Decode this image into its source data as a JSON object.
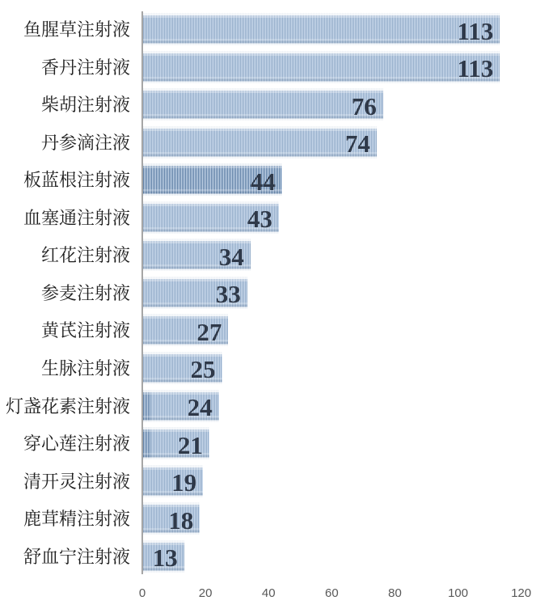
{
  "chart_data": {
    "type": "bar",
    "orientation": "horizontal",
    "title": "",
    "xlabel": "",
    "ylabel": "",
    "categories": [
      "鱼腥草注射液",
      "香丹注射液",
      "柴胡注射液",
      "丹参滴注液",
      "板蓝根注射液",
      "血塞通注射液",
      "红花注射液",
      "参麦注射液",
      "黄芪注射液",
      "生脉注射液",
      "灯盏花素注射液",
      "穿心莲注射液",
      "清开灵注射液",
      "鹿茸精注射液",
      "舒血宁注射液"
    ],
    "values": [
      113,
      113,
      76,
      74,
      44,
      43,
      34,
      33,
      27,
      25,
      24,
      21,
      19,
      18,
      13
    ],
    "xlim": [
      0,
      120
    ],
    "x_ticks": [
      0,
      20,
      40,
      60,
      80,
      100,
      120
    ],
    "grid": false,
    "legend": false,
    "data_labels": "inside-end",
    "colors": {
      "bar_stripe": "#587aa1",
      "bar_background": "#cddcee",
      "value_label": "#2f3949",
      "category_label": "#1c1c1c",
      "tick_label": "#595959",
      "axis_line": "#a6a6a6",
      "background": "#ffffff"
    }
  }
}
